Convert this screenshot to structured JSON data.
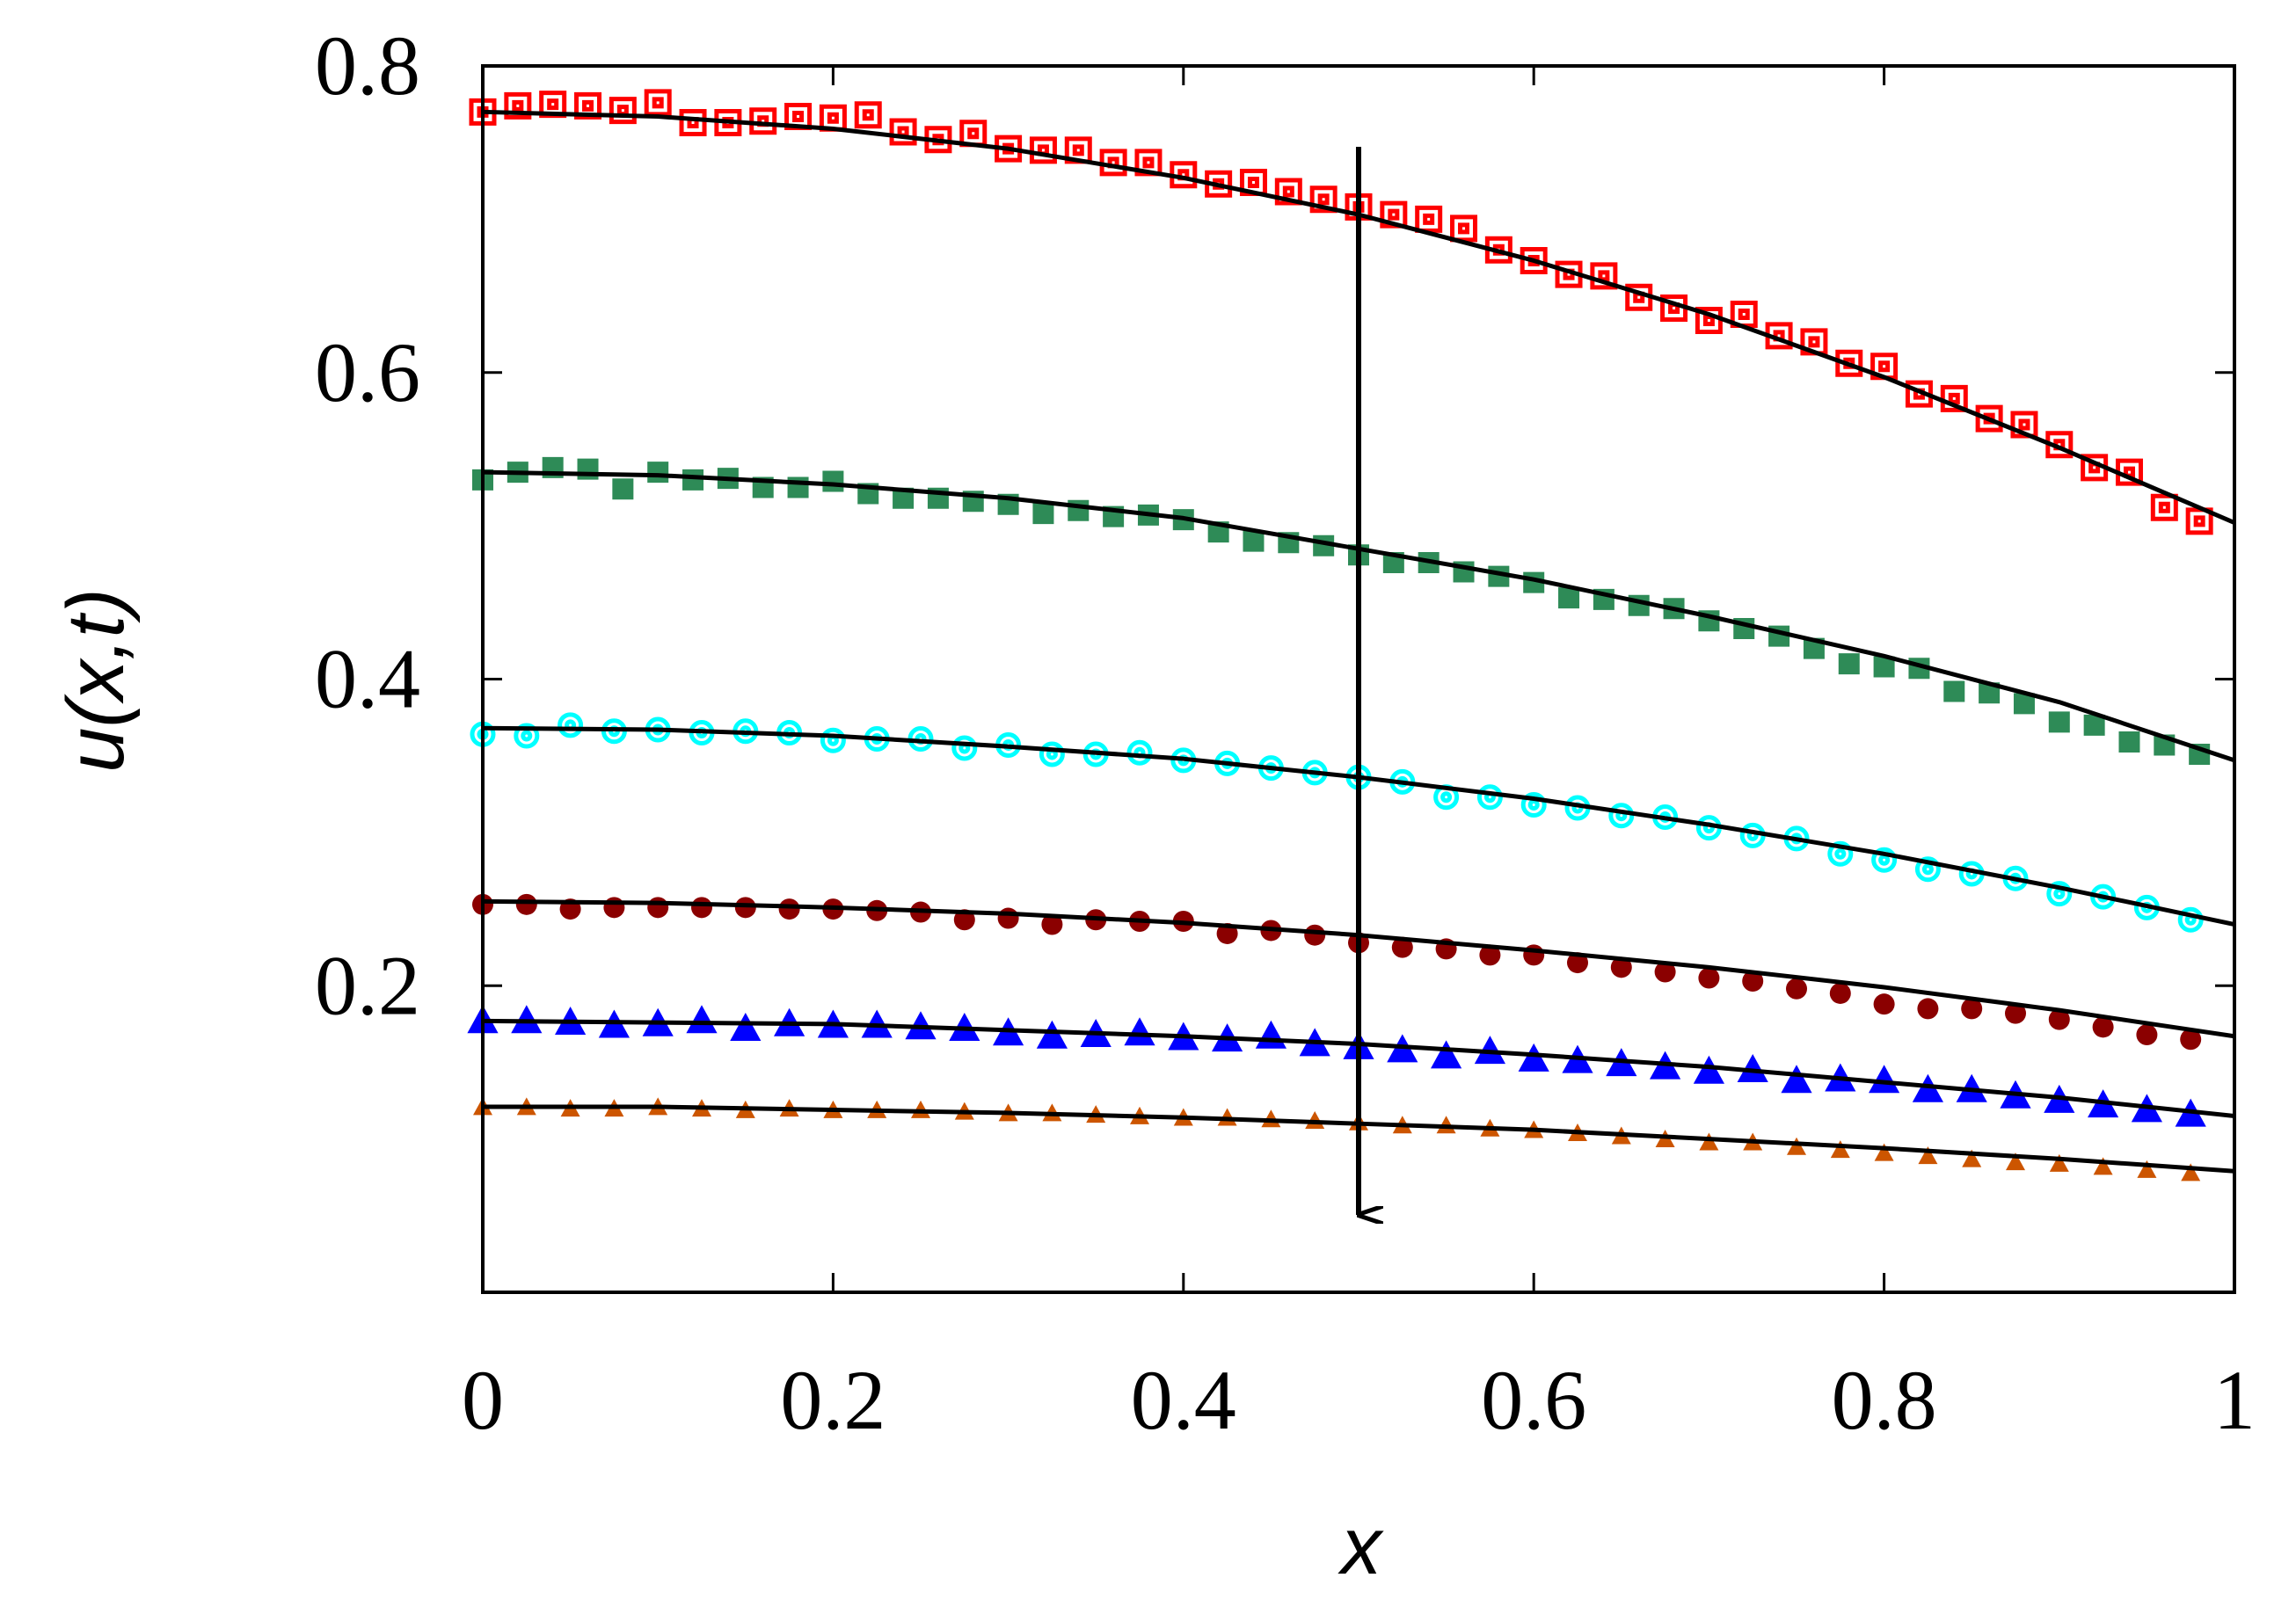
{
  "chart_data": {
    "type": "scatter",
    "x_label": "x",
    "y_label": "u(x,t)",
    "xlim": [
      0,
      1
    ],
    "ylim": [
      0,
      0.8
    ],
    "xticks": [
      0,
      0.2,
      0.4,
      0.6,
      0.8,
      1
    ],
    "yticks": [
      0.2,
      0.4,
      0.6,
      0.8
    ],
    "series": [
      {
        "color": "#ff0000",
        "marker": "open-square",
        "x": [
          0,
          0.02,
          0.04,
          0.06,
          0.08,
          0.1,
          0.12,
          0.14,
          0.16,
          0.18,
          0.2,
          0.22,
          0.24,
          0.26,
          0.28,
          0.3,
          0.32,
          0.34,
          0.36,
          0.38,
          0.4,
          0.42,
          0.44,
          0.46,
          0.48,
          0.5,
          0.52,
          0.54,
          0.56,
          0.58,
          0.6,
          0.62,
          0.64,
          0.66,
          0.68,
          0.7,
          0.72,
          0.74,
          0.76,
          0.78,
          0.8,
          0.82,
          0.84,
          0.86,
          0.88,
          0.9,
          0.92,
          0.94,
          0.96,
          0.98
        ],
        "values": [
          0.77,
          0.774,
          0.775,
          0.774,
          0.771,
          0.776,
          0.763,
          0.763,
          0.764,
          0.767,
          0.766,
          0.768,
          0.757,
          0.752,
          0.756,
          0.746,
          0.745,
          0.745,
          0.737,
          0.737,
          0.729,
          0.723,
          0.724,
          0.718,
          0.713,
          0.708,
          0.703,
          0.7,
          0.694,
          0.68,
          0.673,
          0.664,
          0.663,
          0.649,
          0.642,
          0.634,
          0.638,
          0.624,
          0.62,
          0.606,
          0.604,
          0.586,
          0.583,
          0.57,
          0.566,
          0.553,
          0.538,
          0.535,
          0.512,
          0.503
        ]
      },
      {
        "color": "#2e8b57",
        "marker": "square",
        "x": [
          0,
          0.02,
          0.04,
          0.06,
          0.08,
          0.1,
          0.12,
          0.14,
          0.16,
          0.18,
          0.2,
          0.22,
          0.24,
          0.26,
          0.28,
          0.3,
          0.32,
          0.34,
          0.36,
          0.38,
          0.4,
          0.42,
          0.44,
          0.46,
          0.48,
          0.5,
          0.52,
          0.54,
          0.56,
          0.58,
          0.6,
          0.62,
          0.64,
          0.66,
          0.68,
          0.7,
          0.72,
          0.74,
          0.76,
          0.78,
          0.8,
          0.82,
          0.84,
          0.86,
          0.88,
          0.9,
          0.92,
          0.94,
          0.96,
          0.98
        ],
        "values": [
          0.53,
          0.535,
          0.538,
          0.537,
          0.524,
          0.535,
          0.53,
          0.531,
          0.525,
          0.525,
          0.529,
          0.521,
          0.518,
          0.518,
          0.516,
          0.514,
          0.508,
          0.51,
          0.506,
          0.507,
          0.504,
          0.496,
          0.49,
          0.489,
          0.487,
          0.481,
          0.476,
          0.476,
          0.47,
          0.467,
          0.463,
          0.453,
          0.452,
          0.448,
          0.446,
          0.438,
          0.433,
          0.428,
          0.42,
          0.41,
          0.408,
          0.407,
          0.392,
          0.391,
          0.384,
          0.372,
          0.37,
          0.359,
          0.357,
          0.351
        ]
      },
      {
        "color": "#00ffff",
        "marker": "open-circle",
        "x": [
          0,
          0.025,
          0.05,
          0.075,
          0.1,
          0.125,
          0.15,
          0.175,
          0.2,
          0.225,
          0.25,
          0.275,
          0.3,
          0.325,
          0.35,
          0.375,
          0.4,
          0.425,
          0.45,
          0.475,
          0.5,
          0.525,
          0.55,
          0.575,
          0.6,
          0.625,
          0.65,
          0.675,
          0.7,
          0.725,
          0.75,
          0.775,
          0.8,
          0.825,
          0.85,
          0.875,
          0.9,
          0.925,
          0.95,
          0.975
        ],
        "values": [
          0.364,
          0.363,
          0.37,
          0.366,
          0.367,
          0.365,
          0.366,
          0.365,
          0.36,
          0.361,
          0.361,
          0.355,
          0.357,
          0.351,
          0.351,
          0.352,
          0.347,
          0.345,
          0.342,
          0.339,
          0.336,
          0.333,
          0.323,
          0.323,
          0.318,
          0.316,
          0.311,
          0.31,
          0.303,
          0.298,
          0.296,
          0.286,
          0.282,
          0.276,
          0.273,
          0.27,
          0.26,
          0.258,
          0.251,
          0.243
        ]
      },
      {
        "color": "#8b0000",
        "marker": "circle",
        "x": [
          0,
          0.025,
          0.05,
          0.075,
          0.1,
          0.125,
          0.15,
          0.175,
          0.2,
          0.225,
          0.25,
          0.275,
          0.3,
          0.325,
          0.35,
          0.375,
          0.4,
          0.425,
          0.45,
          0.475,
          0.5,
          0.525,
          0.55,
          0.575,
          0.6,
          0.625,
          0.65,
          0.675,
          0.7,
          0.725,
          0.75,
          0.775,
          0.8,
          0.825,
          0.85,
          0.875,
          0.9,
          0.925,
          0.95,
          0.975
        ],
        "values": [
          0.253,
          0.253,
          0.25,
          0.251,
          0.251,
          0.251,
          0.251,
          0.25,
          0.25,
          0.249,
          0.248,
          0.243,
          0.244,
          0.24,
          0.243,
          0.242,
          0.242,
          0.234,
          0.236,
          0.233,
          0.228,
          0.225,
          0.224,
          0.22,
          0.22,
          0.215,
          0.212,
          0.209,
          0.205,
          0.203,
          0.198,
          0.195,
          0.188,
          0.185,
          0.185,
          0.182,
          0.178,
          0.173,
          0.168,
          0.165
        ]
      },
      {
        "color": "#0000ff",
        "marker": "triangle",
        "x": [
          0,
          0.025,
          0.05,
          0.075,
          0.1,
          0.125,
          0.15,
          0.175,
          0.2,
          0.225,
          0.25,
          0.275,
          0.3,
          0.325,
          0.35,
          0.375,
          0.4,
          0.425,
          0.45,
          0.475,
          0.5,
          0.525,
          0.55,
          0.575,
          0.6,
          0.625,
          0.65,
          0.675,
          0.7,
          0.725,
          0.75,
          0.775,
          0.8,
          0.825,
          0.85,
          0.875,
          0.9,
          0.925,
          0.95,
          0.975
        ],
        "values": [
          0.176,
          0.176,
          0.175,
          0.173,
          0.174,
          0.176,
          0.171,
          0.174,
          0.173,
          0.173,
          0.172,
          0.171,
          0.168,
          0.166,
          0.167,
          0.168,
          0.165,
          0.164,
          0.166,
          0.161,
          0.159,
          0.157,
          0.153,
          0.156,
          0.151,
          0.15,
          0.148,
          0.146,
          0.143,
          0.144,
          0.137,
          0.138,
          0.137,
          0.131,
          0.131,
          0.127,
          0.124,
          0.121,
          0.118,
          0.115
        ]
      },
      {
        "color": "#cc5500",
        "marker": "small-triangle",
        "x": [
          0,
          0.025,
          0.05,
          0.075,
          0.1,
          0.125,
          0.15,
          0.175,
          0.2,
          0.225,
          0.25,
          0.275,
          0.3,
          0.325,
          0.35,
          0.375,
          0.4,
          0.425,
          0.45,
          0.475,
          0.5,
          0.525,
          0.55,
          0.575,
          0.6,
          0.625,
          0.65,
          0.675,
          0.7,
          0.725,
          0.75,
          0.775,
          0.8,
          0.825,
          0.85,
          0.875,
          0.9,
          0.925,
          0.95,
          0.975
        ],
        "values": [
          0.12,
          0.12,
          0.119,
          0.119,
          0.12,
          0.119,
          0.118,
          0.119,
          0.118,
          0.118,
          0.118,
          0.117,
          0.116,
          0.116,
          0.115,
          0.114,
          0.113,
          0.113,
          0.112,
          0.111,
          0.11,
          0.108,
          0.108,
          0.106,
          0.105,
          0.103,
          0.101,
          0.099,
          0.097,
          0.097,
          0.094,
          0.092,
          0.09,
          0.088,
          0.086,
          0.084,
          0.083,
          0.081,
          0.079,
          0.077
        ]
      }
    ],
    "lines": {
      "color": "#000000",
      "x": [
        0,
        0.1,
        0.2,
        0.3,
        0.4,
        0.5,
        0.6,
        0.7,
        0.8,
        0.9,
        1
      ],
      "series": [
        {
          "values": [
            0.77,
            0.767,
            0.759,
            0.746,
            0.727,
            0.703,
            0.673,
            0.638,
            0.597,
            0.551,
            0.502
          ]
        },
        {
          "values": [
            0.535,
            0.533,
            0.527,
            0.518,
            0.505,
            0.485,
            0.465,
            0.441,
            0.415,
            0.385,
            0.347
          ]
        },
        {
          "values": [
            0.368,
            0.367,
            0.363,
            0.356,
            0.348,
            0.336,
            0.322,
            0.305,
            0.286,
            0.264,
            0.24
          ]
        },
        {
          "values": [
            0.255,
            0.254,
            0.251,
            0.247,
            0.241,
            0.233,
            0.223,
            0.212,
            0.199,
            0.184,
            0.167
          ]
        },
        {
          "values": [
            0.177,
            0.176,
            0.175,
            0.171,
            0.167,
            0.162,
            0.155,
            0.147,
            0.137,
            0.127,
            0.115
          ]
        },
        {
          "values": [
            0.121,
            0.121,
            0.119,
            0.117,
            0.114,
            0.11,
            0.106,
            0.1,
            0.094,
            0.087,
            0.079
          ]
        }
      ]
    }
  }
}
